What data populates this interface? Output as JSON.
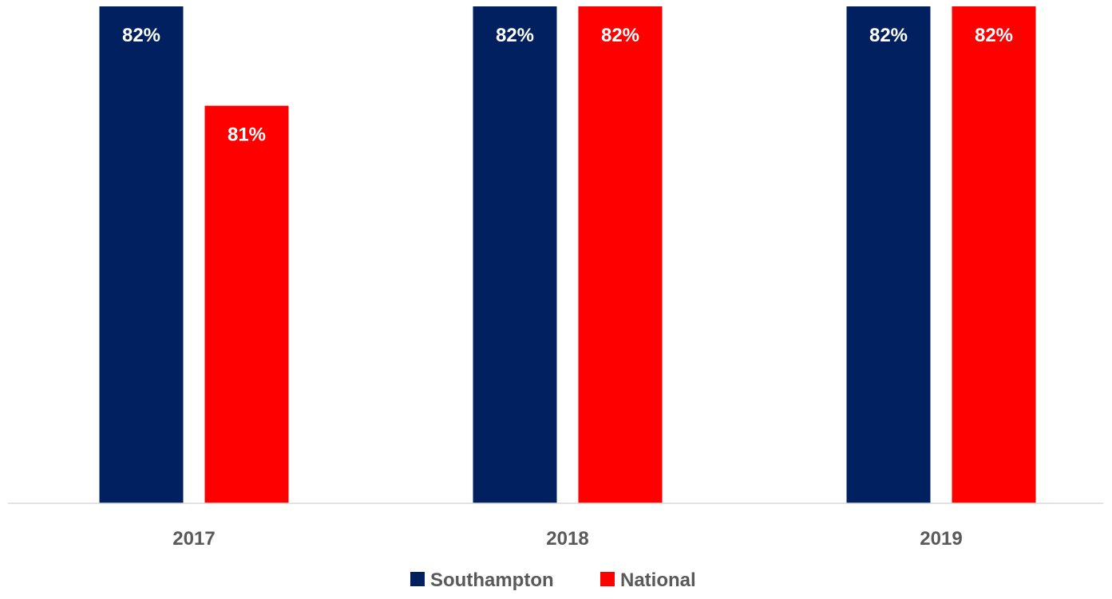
{
  "chart_data": {
    "type": "bar",
    "categories": [
      "2017",
      "2018",
      "2019"
    ],
    "series": [
      {
        "name": "Southampton",
        "values": [
          82,
          82,
          82
        ],
        "labels": [
          "82%",
          "82%",
          "82%"
        ],
        "color": "#002060"
      },
      {
        "name": "National",
        "values": [
          81,
          82,
          82
        ],
        "labels": [
          "81%",
          "82%",
          "82%"
        ],
        "color": "#ff0000"
      }
    ],
    "title": "",
    "xlabel": "",
    "ylabel": "",
    "ylim": [
      77,
      82
    ],
    "grid": false,
    "legend": "bottom-center"
  }
}
